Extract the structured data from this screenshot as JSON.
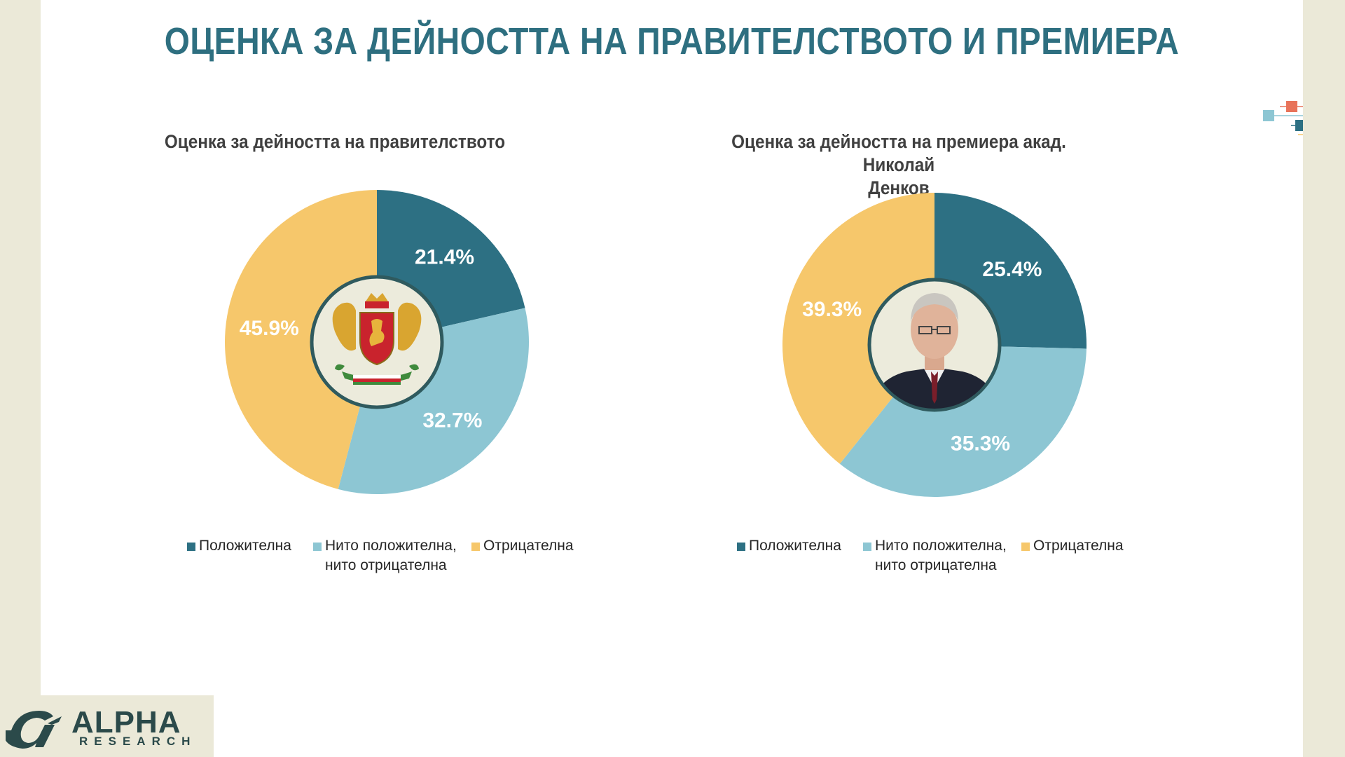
{
  "page_title": "ОЦЕНКА ЗА ДЕЙНОСТТА НА ПРАВИТЕЛСТВОТО И ПРЕМИЕРА",
  "colors": {
    "positive": "#2d7083",
    "neutral": "#8dc6d3",
    "negative": "#f6c76b",
    "title": "#2e6f80",
    "center_bg": "#ecebdc",
    "center_ring": "#2f5a5e"
  },
  "logo": {
    "brand": "ALPHA",
    "sub": "RESEARCH"
  },
  "chart_data": [
    {
      "type": "pie",
      "title": "Оценка за дейността на правителството",
      "categories": [
        "Положителна",
        "Нито положителна, нито отрицателна",
        "Отрицателна"
      ],
      "values": [
        21.4,
        32.7,
        45.9
      ],
      "labels": [
        "21.4%",
        "32.7%",
        "45.9%"
      ],
      "legend": {
        "position": "bottom",
        "items": [
          "Положителна",
          "Нито положителна,",
          "нито отрицателна",
          "Отрицателна"
        ]
      },
      "center_image": "bulgarian-coat-of-arms"
    },
    {
      "type": "pie",
      "title_line1": "Оценка за дейността на премиера акад. Николай",
      "title_line2": "Денков",
      "categories": [
        "Положителна",
        "Нито положителна, нито отрицателна",
        "Отрицателна"
      ],
      "values": [
        25.4,
        35.3,
        39.3
      ],
      "labels": [
        "25.4%",
        "35.3%",
        "39.3%"
      ],
      "legend": {
        "position": "bottom",
        "items": [
          "Положителна",
          "Нито положителна,",
          "нито отрицателна",
          "Отрицателна"
        ]
      },
      "center_image": "prime-minister-portrait"
    }
  ]
}
